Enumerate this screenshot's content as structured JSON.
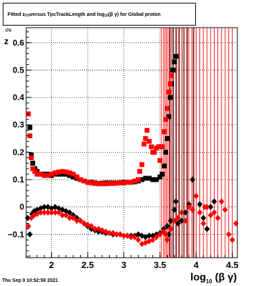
{
  "chart_data": {
    "type": "scatter",
    "title": {
      "prefix": "Fitted  z",
      "sub1": "I70",
      "mid": "  versus TpcTrackLength and log",
      "sub2": "10",
      "suffix": "(β  γ) for Global proton"
    },
    "ylabel": {
      "main": "z",
      "sub": "I70"
    },
    "xlabel": {
      "main": "log",
      "sub": "10",
      "suffix": "(β γ)"
    },
    "xlim": [
      1.65,
      4.57
    ],
    "ylim": [
      -0.185,
      0.655
    ],
    "x_ticks": [
      2,
      2.5,
      3,
      3.5,
      4,
      4.5
    ],
    "x_tick_labels": [
      "2",
      "2.5",
      "3",
      "3.5",
      "4",
      "4.5"
    ],
    "y_ticks": [
      -0.1,
      0,
      0.1,
      0.2,
      0.3,
      0.4,
      0.5,
      0.6
    ],
    "y_tick_labels": [
      "−0.1",
      "0",
      "0.1",
      "0.2",
      "0.3",
      "0.4",
      "0.5",
      "0.6"
    ],
    "grid": true,
    "series": [
      {
        "color": "#000000",
        "marker": "square",
        "points": [
          [
            1.7,
            0.29
          ],
          [
            1.72,
            0.19
          ],
          [
            1.74,
            0.16
          ],
          [
            1.77,
            0.14
          ],
          [
            1.8,
            0.13
          ],
          [
            1.83,
            0.12
          ],
          [
            1.86,
            0.12
          ],
          [
            1.9,
            0.12
          ],
          [
            1.95,
            0.12
          ],
          [
            2.0,
            0.115
          ],
          [
            2.05,
            0.12
          ],
          [
            2.1,
            0.12
          ],
          [
            2.15,
            0.12
          ],
          [
            2.2,
            0.12
          ],
          [
            2.25,
            0.115
          ],
          [
            2.3,
            0.11
          ],
          [
            2.35,
            0.105
          ],
          [
            2.4,
            0.1
          ],
          [
            2.45,
            0.095
          ],
          [
            2.5,
            0.09
          ],
          [
            2.55,
            0.09
          ],
          [
            2.6,
            0.088
          ],
          [
            2.65,
            0.086
          ],
          [
            2.7,
            0.087
          ],
          [
            2.75,
            0.088
          ],
          [
            2.8,
            0.088
          ],
          [
            2.85,
            0.088
          ],
          [
            2.9,
            0.088
          ],
          [
            2.95,
            0.089
          ],
          [
            3.0,
            0.09
          ],
          [
            3.05,
            0.09
          ],
          [
            3.1,
            0.09
          ],
          [
            3.15,
            0.092
          ],
          [
            3.2,
            0.095
          ],
          [
            3.25,
            0.1
          ],
          [
            3.3,
            0.105
          ],
          [
            3.35,
            0.105
          ],
          [
            3.4,
            0.1
          ],
          [
            3.45,
            0.1
          ],
          [
            3.5,
            0.11
          ],
          [
            3.53,
            0.12
          ],
          [
            3.56,
            0.15
          ],
          [
            3.58,
            0.2
          ],
          [
            3.6,
            0.25
          ],
          [
            3.62,
            0.33
          ],
          [
            3.64,
            0.4
          ],
          [
            3.66,
            0.45
          ],
          [
            3.68,
            0.5
          ],
          [
            3.7,
            0.53
          ],
          [
            3.72,
            0.55
          ]
        ]
      },
      {
        "color": "#ff0000",
        "marker": "square",
        "points": [
          [
            1.68,
            0.34
          ],
          [
            1.7,
            0.26
          ],
          [
            1.72,
            0.18
          ],
          [
            1.74,
            0.14
          ],
          [
            1.77,
            0.13
          ],
          [
            1.8,
            0.12
          ],
          [
            1.85,
            0.12
          ],
          [
            1.9,
            0.115
          ],
          [
            1.95,
            0.115
          ],
          [
            2.0,
            0.12
          ],
          [
            2.05,
            0.125
          ],
          [
            2.1,
            0.128
          ],
          [
            2.15,
            0.13
          ],
          [
            2.2,
            0.128
          ],
          [
            2.25,
            0.125
          ],
          [
            2.3,
            0.12
          ],
          [
            2.35,
            0.11
          ],
          [
            2.4,
            0.1
          ],
          [
            2.45,
            0.095
          ],
          [
            2.5,
            0.09
          ],
          [
            2.55,
            0.088
          ],
          [
            2.6,
            0.086
          ],
          [
            2.65,
            0.085
          ],
          [
            2.7,
            0.085
          ],
          [
            2.75,
            0.085
          ],
          [
            2.8,
            0.086
          ],
          [
            2.85,
            0.086
          ],
          [
            2.9,
            0.087
          ],
          [
            2.95,
            0.088
          ],
          [
            3.0,
            0.088
          ],
          [
            3.05,
            0.09
          ],
          [
            3.1,
            0.09
          ],
          [
            3.15,
            0.095
          ],
          [
            3.2,
            0.1
          ],
          [
            3.22,
            0.13
          ],
          [
            3.25,
            0.155
          ],
          [
            3.28,
            0.23
          ],
          [
            3.3,
            0.25
          ],
          [
            3.32,
            0.28
          ],
          [
            3.35,
            0.24
          ],
          [
            3.38,
            0.22
          ],
          [
            3.4,
            0.2
          ],
          [
            3.42,
            0.2
          ],
          [
            3.45,
            0.215
          ],
          [
            3.48,
            0.22
          ],
          [
            3.5,
            0.17
          ],
          [
            3.53,
            0.22
          ],
          [
            3.56,
            0.275
          ],
          [
            3.58,
            0.32
          ],
          [
            3.6,
            0.36
          ],
          [
            3.62,
            0.42
          ],
          [
            3.64,
            0.45
          ],
          [
            3.66,
            0.48
          ]
        ]
      },
      {
        "color": "#000000",
        "marker": "diamond",
        "points": [
          [
            1.67,
            -0.04
          ],
          [
            1.7,
            -0.1
          ],
          [
            1.73,
            -0.025
          ],
          [
            1.76,
            -0.015
          ],
          [
            1.8,
            -0.01
          ],
          [
            1.85,
            -0.005
          ],
          [
            1.9,
            0.0
          ],
          [
            1.95,
            0.0
          ],
          [
            2.0,
            -0.005
          ],
          [
            2.05,
            0.0
          ],
          [
            2.1,
            -0.005
          ],
          [
            2.15,
            -0.01
          ],
          [
            2.2,
            -0.015
          ],
          [
            2.25,
            -0.02
          ],
          [
            2.3,
            -0.03
          ],
          [
            2.35,
            -0.04
          ],
          [
            2.4,
            -0.05
          ],
          [
            2.45,
            -0.06
          ],
          [
            2.5,
            -0.07
          ],
          [
            2.55,
            -0.08
          ],
          [
            2.6,
            -0.085
          ],
          [
            2.65,
            -0.09
          ],
          [
            2.7,
            -0.09
          ],
          [
            2.75,
            -0.095
          ],
          [
            2.8,
            -0.095
          ],
          [
            2.85,
            -0.1
          ],
          [
            2.9,
            -0.1
          ],
          [
            2.95,
            -0.1
          ],
          [
            3.0,
            -0.105
          ],
          [
            3.05,
            -0.105
          ],
          [
            3.1,
            -0.105
          ],
          [
            3.15,
            -0.105
          ],
          [
            3.2,
            -0.1
          ],
          [
            3.25,
            -0.105
          ],
          [
            3.3,
            -0.11
          ],
          [
            3.35,
            -0.105
          ],
          [
            3.4,
            -0.105
          ],
          [
            3.45,
            -0.1
          ],
          [
            3.5,
            -0.095
          ],
          [
            3.55,
            -0.08
          ],
          [
            3.6,
            -0.07
          ],
          [
            3.62,
            -0.1
          ],
          [
            3.65,
            -0.05
          ],
          [
            3.7,
            -0.01
          ],
          [
            3.72,
            0.02
          ],
          [
            3.75,
            -0.06
          ],
          [
            3.8,
            -0.05
          ],
          [
            3.85,
            -0.02
          ],
          [
            3.9,
            0.01
          ],
          [
            3.95,
            0.1
          ],
          [
            4.05,
            0.01
          ],
          [
            4.1,
            -0.04
          ],
          [
            4.15,
            -0.08
          ],
          [
            4.2,
            0.0
          ],
          [
            4.25,
            0.02
          ]
        ]
      },
      {
        "color": "#ff0000",
        "marker": "diamond",
        "points": [
          [
            1.68,
            -0.07
          ],
          [
            1.72,
            -0.04
          ],
          [
            1.76,
            -0.03
          ],
          [
            1.8,
            -0.025
          ],
          [
            1.85,
            -0.02
          ],
          [
            1.9,
            -0.02
          ],
          [
            1.95,
            -0.02
          ],
          [
            2.0,
            -0.02
          ],
          [
            2.05,
            -0.02
          ],
          [
            2.1,
            -0.02
          ],
          [
            2.15,
            -0.03
          ],
          [
            2.2,
            -0.03
          ],
          [
            2.25,
            -0.04
          ],
          [
            2.3,
            -0.04
          ],
          [
            2.35,
            -0.05
          ],
          [
            2.4,
            -0.05
          ],
          [
            2.45,
            -0.06
          ],
          [
            2.5,
            -0.065
          ],
          [
            2.55,
            -0.07
          ],
          [
            2.6,
            -0.08
          ],
          [
            2.65,
            -0.08
          ],
          [
            2.7,
            -0.085
          ],
          [
            2.75,
            -0.09
          ],
          [
            2.8,
            -0.095
          ],
          [
            2.85,
            -0.095
          ],
          [
            2.9,
            -0.1
          ],
          [
            2.95,
            -0.1
          ],
          [
            3.0,
            -0.105
          ],
          [
            3.05,
            -0.105
          ],
          [
            3.1,
            -0.11
          ],
          [
            3.15,
            -0.11
          ],
          [
            3.2,
            -0.12
          ],
          [
            3.25,
            -0.135
          ],
          [
            3.3,
            -0.13
          ],
          [
            3.35,
            -0.125
          ],
          [
            3.4,
            -0.12
          ],
          [
            3.45,
            -0.11
          ],
          [
            3.5,
            -0.1
          ],
          [
            3.55,
            -0.09
          ],
          [
            3.58,
            -0.1
          ],
          [
            3.6,
            -0.12
          ],
          [
            3.65,
            -0.08
          ],
          [
            3.7,
            -0.05
          ],
          [
            3.75,
            -0.04
          ],
          [
            3.8,
            -0.02
          ],
          [
            3.85,
            -0.05
          ],
          [
            3.9,
            0.0
          ],
          [
            3.95,
            -0.01
          ],
          [
            4.0,
            0.04
          ],
          [
            4.05,
            -0.02
          ],
          [
            4.1,
            -0.06
          ],
          [
            4.12,
            0.0
          ],
          [
            4.15,
            0.0
          ],
          [
            4.2,
            -0.03
          ],
          [
            4.25,
            -0.02
          ],
          [
            4.3,
            -0.04
          ],
          [
            4.35,
            0.02
          ],
          [
            4.4,
            -0.01
          ],
          [
            4.45,
            -0.1
          ],
          [
            4.5,
            -0.12
          ],
          [
            4.55,
            -0.06
          ]
        ]
      }
    ],
    "error_bars": [
      {
        "color": "#ff0000",
        "x": [
          3.52,
          3.55,
          3.57,
          3.59,
          3.61,
          3.63,
          3.66,
          3.69,
          3.73,
          3.77,
          3.8,
          3.84,
          3.87,
          3.9,
          3.94,
          3.97,
          4.0,
          4.05,
          4.1,
          4.15,
          4.2,
          4.25,
          4.3,
          4.35,
          4.4,
          4.45,
          4.5
        ]
      },
      {
        "color": "#000000",
        "x": [
          3.64,
          3.68,
          3.72,
          3.76,
          3.82,
          3.88,
          3.96
        ]
      }
    ],
    "footer": "Thu Sep  9 10:52:58 2021"
  }
}
